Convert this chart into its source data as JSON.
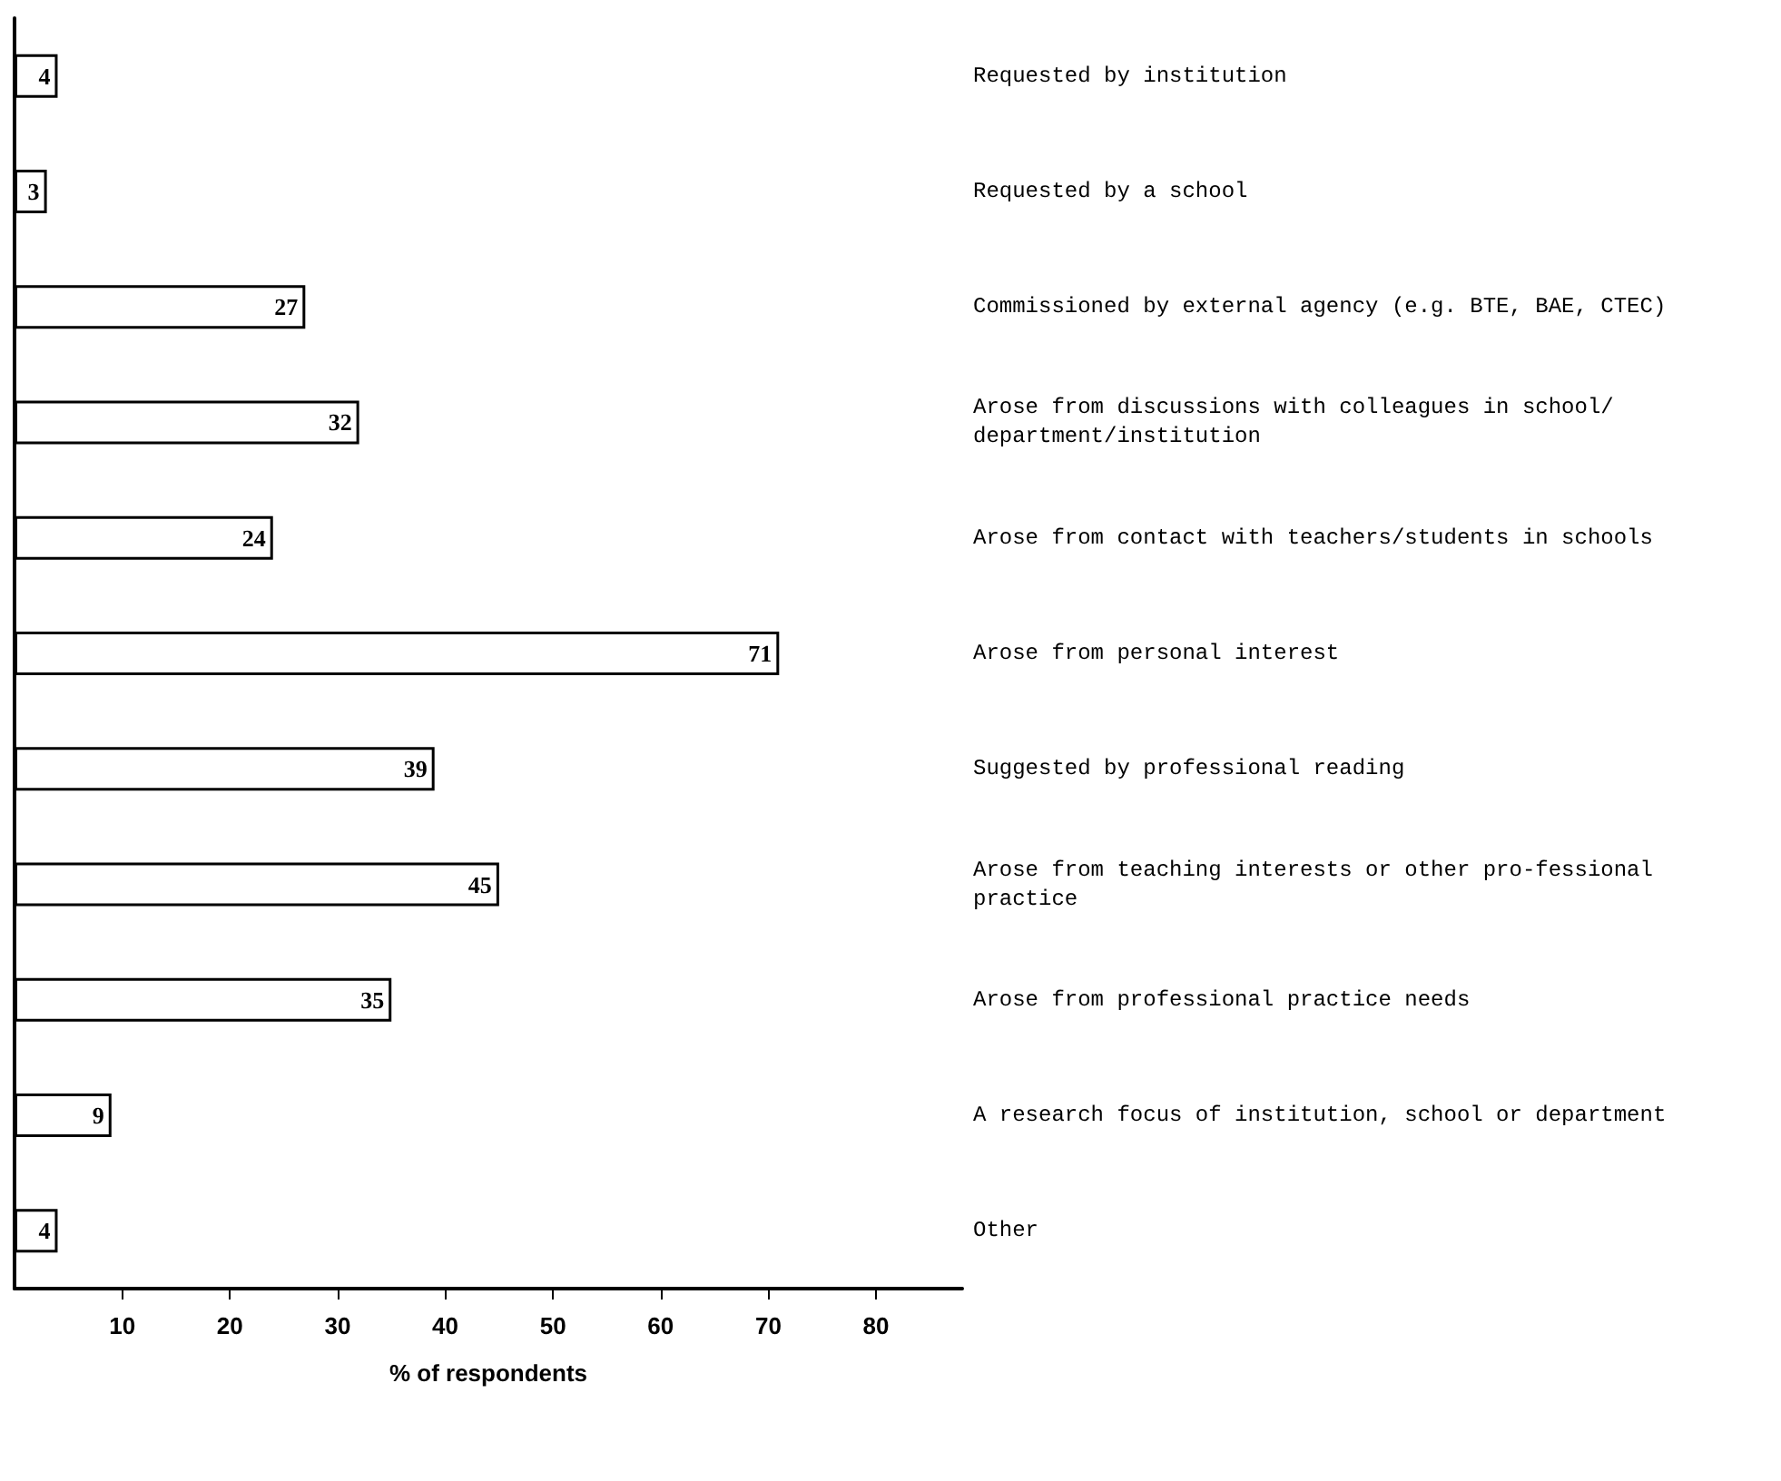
{
  "chart_data": {
    "type": "bar",
    "orientation": "horizontal",
    "xlabel": "% of respondents",
    "categories": [
      "Requested by institution",
      "Requested by a school",
      "Commissioned by external agency (e.g. BTE, BAE, CTEC)",
      "Arose from discussions with colleagues in school/department/institution",
      "Arose from contact with teachers/students in schools",
      "Arose from personal interest",
      "Suggested by professional reading",
      "Arose from teaching interests or other pro-fessional practice",
      "Arose from professional practice needs",
      "A research focus of institution, school or department",
      "Other"
    ],
    "values": [
      4,
      3,
      27,
      32,
      24,
      71,
      39,
      45,
      35,
      9,
      4
    ],
    "color": "#ffffff",
    "data_labels": true,
    "xlim": [
      0,
      88
    ],
    "xticks": [
      10,
      20,
      30,
      40,
      50,
      60,
      70,
      80
    ]
  }
}
